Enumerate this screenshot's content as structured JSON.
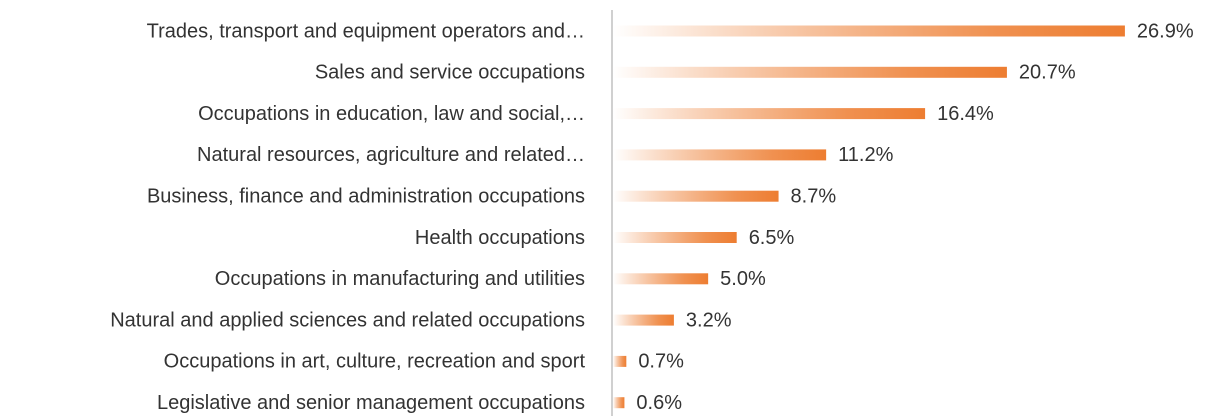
{
  "chart_data": {
    "type": "bar",
    "orientation": "horizontal",
    "categories": [
      "Trades, transport and equipment operators and…",
      "Sales and service occupations",
      "Occupations in education, law and social,…",
      "Natural resources, agriculture and related…",
      "Business, finance and administration occupations",
      "Health occupations",
      "Occupations in manufacturing and utilities",
      "Natural and applied sciences and related occupations",
      "Occupations in art, culture, recreation and sport",
      "Legislative and senior management occupations"
    ],
    "values": [
      26.9,
      20.7,
      16.4,
      11.2,
      8.7,
      6.5,
      5.0,
      3.2,
      0.7,
      0.6
    ],
    "value_labels": [
      "26.9%",
      "20.7%",
      "16.4%",
      "11.2%",
      "8.7%",
      "6.5%",
      "5.0%",
      "3.2%",
      "0.7%",
      "0.6%"
    ],
    "color": "#ed7d31"
  }
}
